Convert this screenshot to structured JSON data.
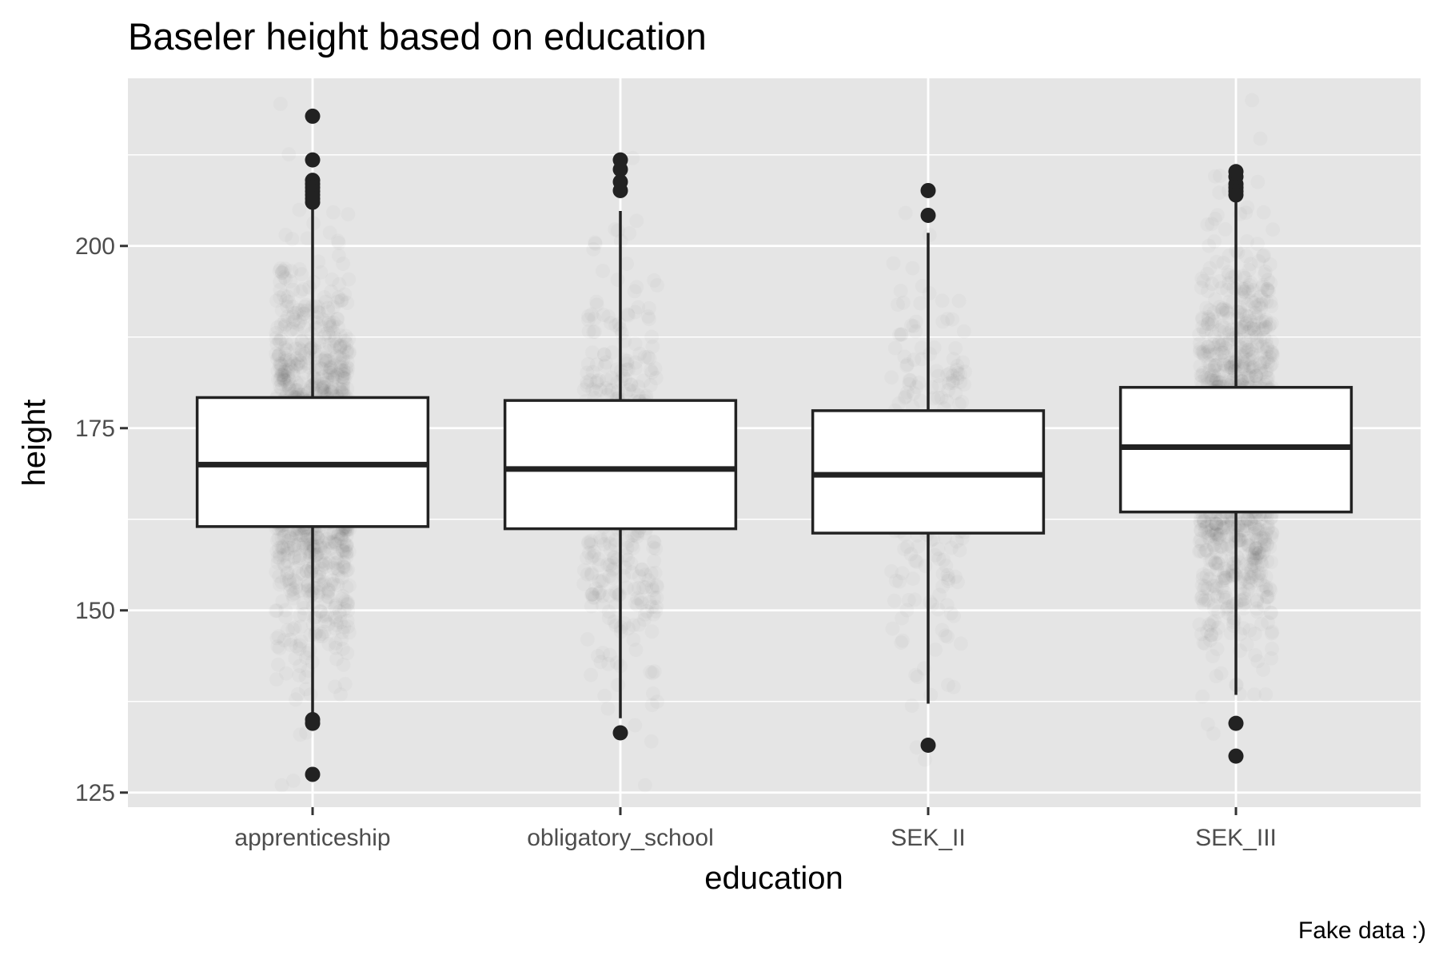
{
  "chart_data": {
    "type": "boxplot",
    "title": "Baseler height based on education",
    "xlabel": "education",
    "ylabel": "height",
    "caption": "Fake data :)",
    "categories": [
      "apprenticeship",
      "obligatory_school",
      "SEK_II",
      "SEK_III"
    ],
    "ylim": [
      123,
      223
    ],
    "yticks": [
      125,
      150,
      175,
      200
    ],
    "grid": true,
    "boxes": [
      {
        "category": "apprenticeship",
        "q1": 161.5,
        "median": 170.0,
        "q3": 179.2,
        "whisker_low": 135.5,
        "whisker_high": 205.8,
        "outliers": [
          217.8,
          211.8,
          209.0,
          208.5,
          208.0,
          207.5,
          207.0,
          206.5,
          206.0,
          135.0,
          134.5,
          127.5
        ]
      },
      {
        "category": "obligatory_school",
        "q1": 161.2,
        "median": 169.4,
        "q3": 178.8,
        "whisker_low": 135.2,
        "whisker_high": 204.8,
        "outliers": [
          211.8,
          210.5,
          208.8,
          207.6,
          133.2
        ]
      },
      {
        "category": "SEK_II",
        "q1": 160.6,
        "median": 168.6,
        "q3": 177.4,
        "whisker_low": 137.2,
        "whisker_high": 201.8,
        "outliers": [
          207.6,
          204.2,
          131.5
        ]
      },
      {
        "category": "SEK_III",
        "q1": 163.5,
        "median": 172.4,
        "q3": 180.6,
        "whisker_low": 138.4,
        "whisker_high": 206.2,
        "outliers": [
          210.2,
          209.5,
          208.5,
          208.0,
          207.5,
          207.0,
          134.5,
          130.0
        ]
      }
    ],
    "jitter": [
      {
        "category": "apprenticeship",
        "mean": 170.0,
        "sd": 13.0,
        "count": 1300,
        "width": 0.12
      },
      {
        "category": "obligatory_school",
        "mean": 169.5,
        "sd": 12.5,
        "count": 520,
        "width": 0.12
      },
      {
        "category": "SEK_II",
        "mean": 168.8,
        "sd": 12.5,
        "count": 260,
        "width": 0.12
      },
      {
        "category": "SEK_III",
        "mean": 172.4,
        "sd": 12.8,
        "count": 1300,
        "width": 0.12
      }
    ],
    "colors": {
      "panel": "#e5e5e5",
      "grid": "#ffffff",
      "box_fill": "#ffffff",
      "box_stroke": "#222222",
      "points": "#000000"
    }
  }
}
